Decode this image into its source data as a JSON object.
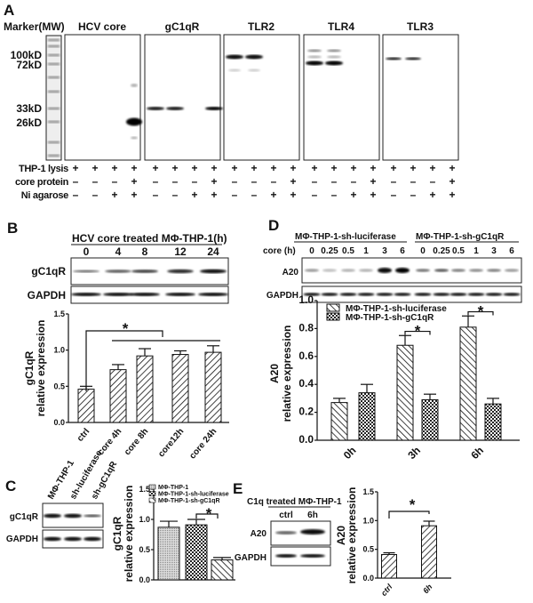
{
  "panels": {
    "A": {
      "label": "A",
      "marker_header": "Marker(MW)",
      "blot_titles": [
        "HCV core",
        "gC1qR",
        "TLR2",
        "TLR4",
        "TLR3"
      ],
      "mw_labels": [
        "100kD",
        "72kD",
        "33kD",
        "26kD"
      ],
      "conditions": [
        {
          "label": "THP-1 lysis",
          "values": [
            "+",
            "+",
            "+",
            "+",
            "+",
            "+",
            "+",
            "+",
            "+",
            "+",
            "+",
            "+",
            "+",
            "+",
            "+",
            "+",
            "+",
            "+",
            "+",
            "+"
          ]
        },
        {
          "label": "core protein",
          "values": [
            "–",
            "–",
            "–",
            "+",
            "–",
            "–",
            "–",
            "+",
            "–",
            "–",
            "–",
            "+",
            "–",
            "–",
            "–",
            "+",
            "–",
            "–",
            "–",
            "+"
          ]
        },
        {
          "label": "Ni agarose",
          "values": [
            "–",
            "–",
            "+",
            "+",
            "–",
            "–",
            "+",
            "+",
            "–",
            "–",
            "+",
            "+",
            "–",
            "–",
            "+",
            "+",
            "–",
            "–",
            "+",
            "+"
          ]
        }
      ]
    },
    "B": {
      "label": "B",
      "header": "HCV  core  treated MΦ-THP-1(h)",
      "timepoints": [
        "0",
        "4",
        "8",
        "12",
        "24"
      ],
      "blot_rows": [
        "gC1qR",
        "GAPDH"
      ],
      "significance": "*"
    },
    "C": {
      "label": "C",
      "lanes": [
        "MΦ-THP-1",
        "sh-luciferase",
        "sh-gC1qR"
      ],
      "blot_rows": [
        "gC1qR",
        "GAPDH"
      ],
      "significance": "*"
    },
    "D": {
      "label": "D",
      "group_headers": [
        "MΦ-THP-1-sh-luciferase",
        "MΦ-THP-1-sh-gC1qR"
      ],
      "time_label": "core (h)",
      "timepoints": [
        "0",
        "0.25",
        "0.5",
        "1",
        "3",
        "6",
        "0",
        "0.25",
        "0.5",
        "1",
        "3",
        "6"
      ],
      "blot_rows": [
        "A20",
        "GAPDH"
      ],
      "significance": [
        "*",
        "*"
      ]
    },
    "E": {
      "label": "E",
      "header": "C1q treated MΦ-THP-1",
      "lanes": [
        "ctrl",
        "6h"
      ],
      "blot_rows": [
        "A20",
        "GAPDH"
      ],
      "significance": "*"
    }
  },
  "chart_data": [
    {
      "id": "B",
      "type": "bar",
      "categories": [
        "ctrl",
        "core 4h",
        "core 8h",
        "core12h",
        "core 24h"
      ],
      "values": [
        0.46,
        0.73,
        0.92,
        0.94,
        0.97
      ],
      "errors": [
        0.04,
        0.07,
        0.1,
        0.05,
        0.09
      ],
      "ylabel": [
        "gC1qR",
        "relative expression"
      ],
      "ylim": [
        0,
        1.5
      ],
      "yticks": [
        "0.0",
        "0.5",
        "1.0",
        "1.5"
      ],
      "pattern": "diag-forward"
    },
    {
      "id": "D",
      "type": "bar",
      "categories": [
        "0h",
        "3h",
        "6h"
      ],
      "series": [
        {
          "name": "MΦ-THP-1-sh-luciferase",
          "values": [
            0.27,
            0.68,
            0.81
          ],
          "errors": [
            0.03,
            0.07,
            0.08
          ],
          "pattern": "diag-back"
        },
        {
          "name": "MΦ-THP-1-sh-gC1qR",
          "values": [
            0.34,
            0.29,
            0.26
          ],
          "errors": [
            0.06,
            0.04,
            0.04
          ],
          "pattern": "checker"
        }
      ],
      "ylabel": [
        "A20",
        "relative expression"
      ],
      "ylim": [
        0,
        1.0
      ],
      "yticks": [
        "0.0",
        "0.2",
        "0.4",
        "0.6",
        "0.8",
        "1.0"
      ],
      "legend": "top-left"
    },
    {
      "id": "C",
      "type": "bar",
      "categories": [
        "MΦ-THP-1",
        "MΦ-THP-1-sh-luciferase",
        "MΦ-THP-1-sh-gC1qR"
      ],
      "values": [
        0.87,
        0.91,
        0.33
      ],
      "errors": [
        0.1,
        0.09,
        0.04
      ],
      "patterns": [
        "dots",
        "checker",
        "diag-back"
      ],
      "ylabel": [
        "gC1qR",
        "relative expression"
      ],
      "ylim": [
        0,
        1.5
      ],
      "yticks": [
        "0.0",
        "0.5",
        "1.0",
        "1.5"
      ],
      "legend": "top-left"
    },
    {
      "id": "E",
      "type": "bar",
      "categories": [
        "ctrl",
        "6h"
      ],
      "values": [
        0.41,
        0.91
      ],
      "errors": [
        0.03,
        0.08
      ],
      "ylabel": [
        "A20",
        "relative expression"
      ],
      "ylim": [
        0,
        1.5
      ],
      "yticks": [
        "0.0",
        "0.5",
        "1.0",
        "1.5"
      ],
      "pattern": "diag-forward"
    }
  ]
}
